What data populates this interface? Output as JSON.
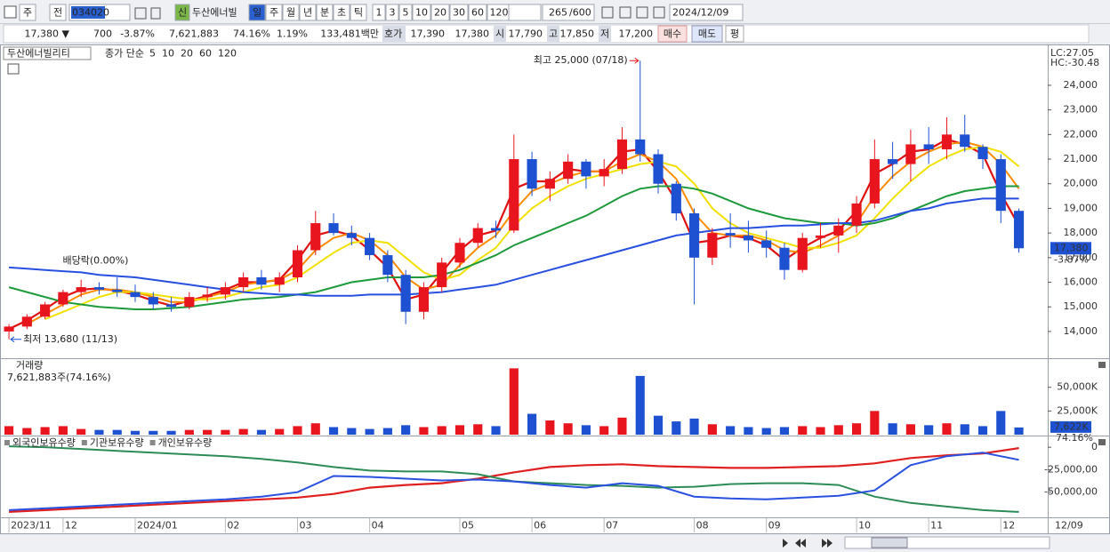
{
  "toolbar": {
    "market": "주",
    "scope": "전",
    "code": "034020",
    "badge": "신",
    "name": "두산에너빌",
    "periods": [
      "일",
      "주",
      "월",
      "년",
      "분",
      "초",
      "틱"
    ],
    "intervals": [
      "1",
      "3",
      "5",
      "10",
      "20",
      "30",
      "60",
      "120"
    ],
    "count": "265",
    "max": "/600",
    "date": "2024/12/09"
  },
  "quote": {
    "price": "17,380 ▼",
    "change": "700",
    "change_pct": "-3.87%",
    "volume": "7,621,883",
    "volume_ratio": "74.16%",
    "turnover": "1.19%",
    "amount": "133,481백만",
    "ask_label": "호가",
    "ask": "17,390",
    "bid": "17,380",
    "open_label": "시",
    "open": "17,790",
    "high_label": "고",
    "high": "17,850",
    "low_label": "저",
    "low": "17,200",
    "buy": "매수",
    "sell": "매도",
    "avg": "평"
  },
  "chart_data": [
    {
      "type": "candlestick",
      "name": "두산에너빌리티",
      "ma_label": "종가 단순",
      "x": [
        0,
        1,
        2,
        3,
        4,
        5,
        6,
        7,
        8,
        9,
        10,
        11,
        12,
        13,
        14,
        15,
        16,
        17,
        18,
        19,
        20,
        21,
        22,
        23,
        24,
        25,
        26,
        27,
        28,
        29,
        30,
        31,
        32,
        33,
        34,
        35,
        36,
        37,
        38,
        39,
        40,
        41,
        42,
        43,
        44,
        45,
        46,
        47,
        48,
        49,
        50,
        51,
        52,
        53,
        54,
        55,
        56
      ],
      "open": [
        14000,
        14200,
        14600,
        15100,
        15600,
        15800,
        15700,
        15600,
        15400,
        15100,
        15000,
        15400,
        15500,
        15800,
        16200,
        15900,
        16200,
        17300,
        18400,
        18000,
        17800,
        17100,
        16300,
        14800,
        15800,
        16800,
        17600,
        18200,
        18100,
        21000,
        19800,
        20200,
        20900,
        20300,
        20600,
        21800,
        21200,
        20000,
        18800,
        17000,
        18000,
        17900,
        17700,
        17400,
        16500,
        17800,
        17900,
        18300,
        19200,
        21000,
        20800,
        21600,
        21400,
        22000,
        21500,
        21000,
        18900
      ],
      "high": [
        14300,
        14700,
        15200,
        15700,
        16100,
        16000,
        16200,
        15900,
        15600,
        15400,
        15600,
        15800,
        16000,
        16400,
        16500,
        16400,
        17500,
        18900,
        18800,
        18300,
        18000,
        17300,
        16500,
        16000,
        17000,
        17800,
        18400,
        18500,
        22000,
        21300,
        20500,
        21200,
        21000,
        21000,
        22300,
        25000,
        21400,
        20100,
        19000,
        18200,
        18800,
        18500,
        18100,
        17600,
        18000,
        18400,
        18600,
        19500,
        21800,
        21700,
        22200,
        22300,
        22700,
        22800,
        21600,
        21200,
        19000
      ],
      "low": [
        13680,
        14100,
        14500,
        15000,
        15400,
        15500,
        15400,
        15200,
        14900,
        14800,
        14900,
        15200,
        15300,
        15600,
        15700,
        15600,
        16000,
        17100,
        17900,
        17500,
        16900,
        16000,
        14300,
        14500,
        15600,
        16600,
        17400,
        17800,
        18000,
        19500,
        19300,
        20000,
        19800,
        19900,
        20400,
        20900,
        19600,
        18500,
        15100,
        16700,
        17400,
        17200,
        17000,
        16100,
        16400,
        17400,
        17200,
        18000,
        19000,
        20200,
        20100,
        20800,
        21000,
        21300,
        20600,
        18400,
        17200
      ],
      "close": [
        14200,
        14600,
        15100,
        15600,
        15800,
        15700,
        15600,
        15400,
        15100,
        15000,
        15400,
        15500,
        15800,
        16200,
        15900,
        16200,
        17300,
        18400,
        18000,
        17800,
        17100,
        16300,
        14800,
        15800,
        16800,
        17600,
        18200,
        18100,
        21000,
        19800,
        20200,
        20900,
        20300,
        20600,
        21800,
        21200,
        20000,
        18800,
        17000,
        18000,
        17900,
        17700,
        17400,
        16500,
        17800,
        17900,
        18300,
        19200,
        21000,
        20800,
        21600,
        21400,
        22000,
        21500,
        21000,
        18900,
        17380
      ],
      "up_color": "#e8141e",
      "down_color": "#1e50d2",
      "series": [
        {
          "name": "5",
          "color": "#e01010",
          "values": [
            14100,
            14450,
            14900,
            15400,
            15700,
            15750,
            15650,
            15500,
            15250,
            15050,
            15250,
            15450,
            15700,
            16000,
            16000,
            16100,
            16900,
            17900,
            18100,
            17900,
            17300,
            16600,
            15300,
            15500,
            16400,
            17300,
            17900,
            18100,
            19800,
            20100,
            20100,
            20600,
            20500,
            20500,
            21300,
            21400,
            20500,
            19300,
            17600,
            17700,
            17900,
            17800,
            17500,
            16900,
            17400,
            17800,
            18100,
            18900,
            20400,
            20800,
            21300,
            21400,
            21800,
            21600,
            21200,
            19600,
            18300
          ]
        },
        {
          "name": "10",
          "color": "#ff8c00",
          "values": [
            null,
            14300,
            14700,
            15100,
            15500,
            15700,
            15700,
            15600,
            15400,
            15200,
            15200,
            15400,
            15600,
            15900,
            16000,
            16100,
            16500,
            17300,
            17800,
            18000,
            17700,
            17100,
            16200,
            15700,
            15900,
            16700,
            17400,
            17900,
            18900,
            19700,
            20000,
            20300,
            20500,
            20500,
            20900,
            21200,
            20900,
            20200,
            18800,
            18000,
            17900,
            17900,
            17700,
            17300,
            17200,
            17500,
            17900,
            18400,
            19500,
            20300,
            20900,
            21300,
            21600,
            21700,
            21500,
            20800,
            19800
          ]
        },
        {
          "name": "20",
          "color": "#f2e000",
          "values": [
            null,
            null,
            14500,
            14800,
            15100,
            15400,
            15600,
            15600,
            15500,
            15400,
            15300,
            15300,
            15400,
            15600,
            15800,
            15900,
            16200,
            16700,
            17200,
            17600,
            17700,
            17600,
            17000,
            16400,
            16100,
            16300,
            16900,
            17400,
            18300,
            19000,
            19500,
            19900,
            20200,
            20400,
            20600,
            20800,
            20900,
            20700,
            20000,
            19000,
            18400,
            18000,
            17800,
            17600,
            17400,
            17400,
            17600,
            17900,
            18600,
            19400,
            20100,
            20700,
            21100,
            21400,
            21500,
            21300,
            20700
          ]
        },
        {
          "name": "60",
          "color": "#1e9a3c",
          "values": [
            15800,
            15600,
            15400,
            15200,
            15100,
            15000,
            14950,
            14900,
            14900,
            14950,
            15000,
            15100,
            15200,
            15300,
            15350,
            15400,
            15500,
            15600,
            15800,
            16000,
            16100,
            16200,
            16200,
            16200,
            16300,
            16500,
            16800,
            17100,
            17500,
            17800,
            18100,
            18400,
            18700,
            19100,
            19500,
            19800,
            19900,
            19900,
            19800,
            19600,
            19300,
            19000,
            18800,
            18600,
            18500,
            18400,
            18400,
            18300,
            18400,
            18600,
            18900,
            19200,
            19500,
            19700,
            19800,
            19900,
            19900
          ]
        },
        {
          "name": "120",
          "color": "#2850e0",
          "values": [
            16600,
            16550,
            16500,
            16450,
            16400,
            16300,
            16250,
            16200,
            16100,
            16000,
            15900,
            15800,
            15700,
            15600,
            15550,
            15500,
            15500,
            15450,
            15450,
            15450,
            15500,
            15500,
            15500,
            15550,
            15600,
            15700,
            15800,
            15900,
            16100,
            16300,
            16500,
            16700,
            16900,
            17100,
            17300,
            17500,
            17700,
            17900,
            18000,
            18100,
            18200,
            18200,
            18250,
            18300,
            18300,
            18350,
            18400,
            18400,
            18500,
            18700,
            18900,
            19000,
            19200,
            19300,
            19400,
            19400,
            19400
          ]
        }
      ],
      "xlim": [
        -0.25,
        57.6
      ],
      "ylim": [
        12950,
        25370
      ],
      "yticks": [
        {
          "value": 14000,
          "label": "14,000"
        },
        {
          "value": 15000,
          "label": "15,000"
        },
        {
          "value": 16000,
          "label": "16,000"
        },
        {
          "value": 17000,
          "label": "17,000"
        },
        {
          "value": 18000,
          "label": "18,000"
        },
        {
          "value": 19000,
          "label": "19,000"
        },
        {
          "value": 20000,
          "label": "20,000"
        },
        {
          "value": 21000,
          "label": "21,000"
        },
        {
          "value": 22000,
          "label": "22,000"
        },
        {
          "value": 23000,
          "label": "23,000"
        },
        {
          "value": 24000,
          "label": "24,000"
        }
      ],
      "high_note": "최고 25,000 (07/18)",
      "low_note": "최저 13,680 (11/13)",
      "dividend_note": "배당락(0.00%)",
      "corner_notes": [
        "LC:27.05",
        "HC:-30.48"
      ],
      "current_label": "17,380",
      "current_change": "-3.87%"
    },
    {
      "type": "bar",
      "name": "거래량",
      "summary": "7,621,883주(74.16%)",
      "x": [
        0,
        1,
        2,
        3,
        4,
        5,
        6,
        7,
        8,
        9,
        10,
        11,
        12,
        13,
        14,
        15,
        16,
        17,
        18,
        19,
        20,
        21,
        22,
        23,
        24,
        25,
        26,
        27,
        28,
        29,
        30,
        31,
        32,
        33,
        34,
        35,
        36,
        37,
        38,
        39,
        40,
        41,
        42,
        43,
        44,
        45,
        46,
        47,
        48,
        49,
        50,
        51,
        52,
        53,
        54,
        55,
        56
      ],
      "values": [
        9000,
        7000,
        8000,
        9000,
        6000,
        5000,
        5000,
        4000,
        4000,
        4000,
        5000,
        5000,
        5000,
        6000,
        5000,
        6000,
        9000,
        12000,
        8000,
        7000,
        6000,
        7000,
        10000,
        8000,
        9000,
        10000,
        11000,
        9000,
        70000,
        22000,
        15000,
        12000,
        10000,
        9000,
        18000,
        62000,
        20000,
        14000,
        17000,
        11000,
        9000,
        8000,
        7000,
        8000,
        9000,
        8000,
        10000,
        12000,
        25000,
        12000,
        11000,
        10000,
        12000,
        11000,
        9000,
        25000,
        7622
      ],
      "xlim": [
        -0.25,
        57.6
      ],
      "ylim": [
        0,
        76000
      ],
      "yticks": [
        {
          "value": 25000,
          "label": "25,000K"
        },
        {
          "value": 50000,
          "label": "50,000K"
        }
      ],
      "current_label": "7,622K",
      "current_ratio": "74.16%"
    },
    {
      "type": "line",
      "x": [
        0,
        2,
        4,
        6,
        8,
        10,
        12,
        14,
        16,
        18,
        20,
        22,
        24,
        26,
        28,
        30,
        32,
        34,
        36,
        38,
        40,
        42,
        44,
        46,
        48,
        50,
        52,
        54,
        56
      ],
      "series": [
        {
          "name": "외국인보유수량",
          "color": "#e02020",
          "values": [
            -72000000,
            -70000000,
            -68000000,
            -66000000,
            -64000000,
            -62000000,
            -60000000,
            -58000000,
            -56000000,
            -52000000,
            -45000000,
            -42000000,
            -40000000,
            -35000000,
            -28000000,
            -22000000,
            -20000000,
            -19000000,
            -21000000,
            -22000000,
            -23000000,
            -23000000,
            -22000000,
            -21000000,
            -18000000,
            -12000000,
            -9000000,
            -7000000,
            -1000000
          ]
        },
        {
          "name": "기관보유수량",
          "color": "#2e8b57",
          "values": [
            1000000,
            0,
            -2000000,
            -4000000,
            -6000000,
            -8000000,
            -10000000,
            -13000000,
            -17000000,
            -22000000,
            -26000000,
            -27000000,
            -27000000,
            -30000000,
            -38000000,
            -40000000,
            -42000000,
            -43000000,
            -45000000,
            -44000000,
            -41000000,
            -40000000,
            -40000000,
            -42000000,
            -55000000,
            -62000000,
            -66000000,
            -70000000,
            -72000000
          ]
        },
        {
          "name": "개인보유수량",
          "color": "#2a50e0",
          "values": [
            -70000000,
            -68000000,
            -66000000,
            -64000000,
            -62000000,
            -60000000,
            -58000000,
            -55000000,
            -50000000,
            -32000000,
            -33000000,
            -35000000,
            -37000000,
            -36000000,
            -38000000,
            -42000000,
            -45000000,
            -40000000,
            -43000000,
            -55000000,
            -57000000,
            -58000000,
            -56000000,
            -54000000,
            -48000000,
            -20000000,
            -10000000,
            -6000000,
            -14000000
          ]
        }
      ],
      "xlim": [
        -0.25,
        57.6
      ],
      "ylim": [
        -78000000,
        11000000
      ],
      "yticks": [
        0,
        {
          "value": -25000000,
          "label": "-25,000,00"
        },
        {
          "value": -50000000,
          "label": "-50,000,00"
        }
      ],
      "xticks": [
        {
          "value": 0,
          "label": "2023/11"
        },
        {
          "value": 3,
          "label": "12"
        },
        {
          "value": 7,
          "label": "2024/01"
        },
        {
          "value": 12,
          "label": "02"
        },
        {
          "value": 16,
          "label": "03"
        },
        {
          "value": 20,
          "label": "04"
        },
        {
          "value": 25,
          "label": "05"
        },
        {
          "value": 29,
          "label": "06"
        },
        {
          "value": 33,
          "label": "07"
        },
        {
          "value": 38,
          "label": "08"
        },
        {
          "value": 42,
          "label": "09"
        },
        {
          "value": 47,
          "label": "10"
        },
        {
          "value": 51,
          "label": "11"
        },
        {
          "value": 55,
          "label": "12"
        }
      ],
      "last_date": "12/09"
    }
  ]
}
